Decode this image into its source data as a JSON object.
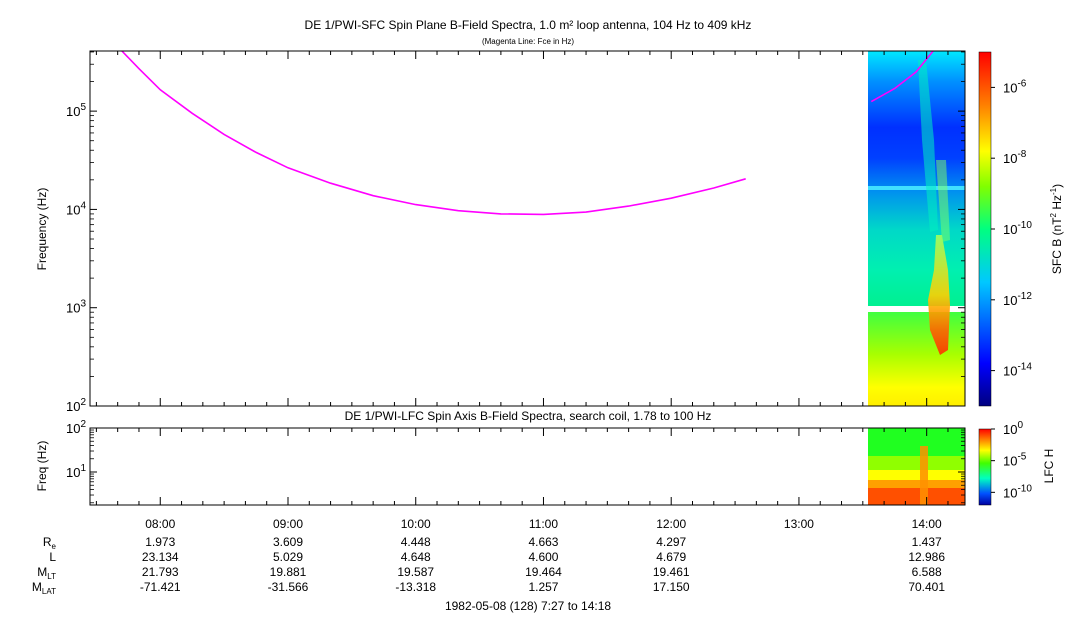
{
  "chart_data": [
    {
      "type": "heatmap",
      "title": "DE 1/PWI-SFC  Spin Plane B-Field Spectra, 1.0 m² loop antenna, 104 Hz to 409 kHz",
      "subtitle": "(Magenta Line: Fce in Hz)",
      "ylabel": "Frequency (Hz)",
      "yscale": "log",
      "ylim": [
        100,
        409000
      ],
      "yticks": [
        {
          "exp": "2",
          "value": 100
        },
        {
          "exp": "3",
          "value": 1000
        },
        {
          "exp": "4",
          "value": 10000
        },
        {
          "exp": "5",
          "value": 100000
        }
      ],
      "series": [
        {
          "name": "Fce",
          "color": "#ff00ff",
          "points": [
            {
              "t": "07:42",
              "y": 409000
            },
            {
              "t": "07:50",
              "y": 270000
            },
            {
              "t": "08:00",
              "y": 165000
            },
            {
              "t": "08:15",
              "y": 95000
            },
            {
              "t": "08:30",
              "y": 58000
            },
            {
              "t": "08:45",
              "y": 38000
            },
            {
              "t": "09:00",
              "y": 26500
            },
            {
              "t": "09:20",
              "y": 18500
            },
            {
              "t": "09:40",
              "y": 13800
            },
            {
              "t": "10:00",
              "y": 11200
            },
            {
              "t": "10:20",
              "y": 9700
            },
            {
              "t": "10:40",
              "y": 9000
            },
            {
              "t": "11:00",
              "y": 8900
            },
            {
              "t": "11:20",
              "y": 9400
            },
            {
              "t": "11:40",
              "y": 10800
            },
            {
              "t": "12:00",
              "y": 13000
            },
            {
              "t": "12:20",
              "y": 16500
            },
            {
              "t": "12:35",
              "y": 20500
            }
          ]
        },
        {
          "name": "Fce",
          "color": "#ff00ff",
          "points": [
            {
              "t": "13:34",
              "y": 125000
            },
            {
              "t": "13:45",
              "y": 170000
            },
            {
              "t": "13:55",
              "y": 250000
            },
            {
              "t": "14:03",
              "y": 409000
            }
          ]
        }
      ],
      "data_span": [
        "13:33",
        "14:17"
      ],
      "colorbar": {
        "label": "SFC B (nT",
        "label_sup1": "2",
        "label_mid": " Hz",
        "label_sup2": "-1",
        "label_end": ")",
        "scale": "log",
        "range": [
          1e-15,
          1e-05
        ],
        "ticks": [
          {
            "exp": "-6",
            "value": 1e-06
          },
          {
            "exp": "-8",
            "value": 1e-08
          },
          {
            "exp": "-10",
            "value": 1e-10
          },
          {
            "exp": "-12",
            "value": 1e-12
          },
          {
            "exp": "-14",
            "value": 1e-14
          }
        ]
      }
    },
    {
      "type": "heatmap",
      "title": "DE 1/PWI-LFC  Spin Axis B-Field Spectra, search coil, 1.78 to 100 Hz",
      "ylabel": "Freq (Hz)",
      "yscale": "log",
      "ylim": [
        1.78,
        100
      ],
      "yticks": [
        {
          "exp": "1",
          "value": 10
        },
        {
          "exp": "2",
          "value": 100
        }
      ],
      "data_span": [
        "13:33",
        "14:17"
      ],
      "colorbar": {
        "label": "LFC H",
        "scale": "log",
        "range": [
          1e-12,
          1
        ],
        "ticks": [
          {
            "exp": "0",
            "value": 1
          },
          {
            "exp": "-5",
            "value": 1e-05
          },
          {
            "exp": "-10",
            "value": 1e-10
          }
        ]
      }
    }
  ],
  "time_axis": {
    "start": "07:27",
    "end": "14:18",
    "ticks": [
      "08:00",
      "09:00",
      "10:00",
      "11:00",
      "12:00",
      "13:00",
      "14:00"
    ],
    "caption": "1982-05-08 (128) 7:27 to 14:18"
  },
  "ephemeris": {
    "rows": [
      {
        "label": "R",
        "sub": "e",
        "values": [
          "1.973",
          "3.609",
          "4.448",
          "4.663",
          "4.297",
          "",
          "1.437"
        ]
      },
      {
        "label": "L",
        "sub": "",
        "values": [
          "23.134",
          "5.029",
          "4.648",
          "4.600",
          "4.679",
          "",
          "12.986"
        ]
      },
      {
        "label": "M",
        "sub": "LT",
        "values": [
          "21.793",
          "19.881",
          "19.587",
          "19.464",
          "19.461",
          "",
          "6.588"
        ]
      },
      {
        "label": "M",
        "sub": "LAT",
        "values": [
          "-71.421",
          "-31.566",
          "-13.318",
          "1.257",
          "17.150",
          "",
          "70.401"
        ]
      }
    ]
  }
}
